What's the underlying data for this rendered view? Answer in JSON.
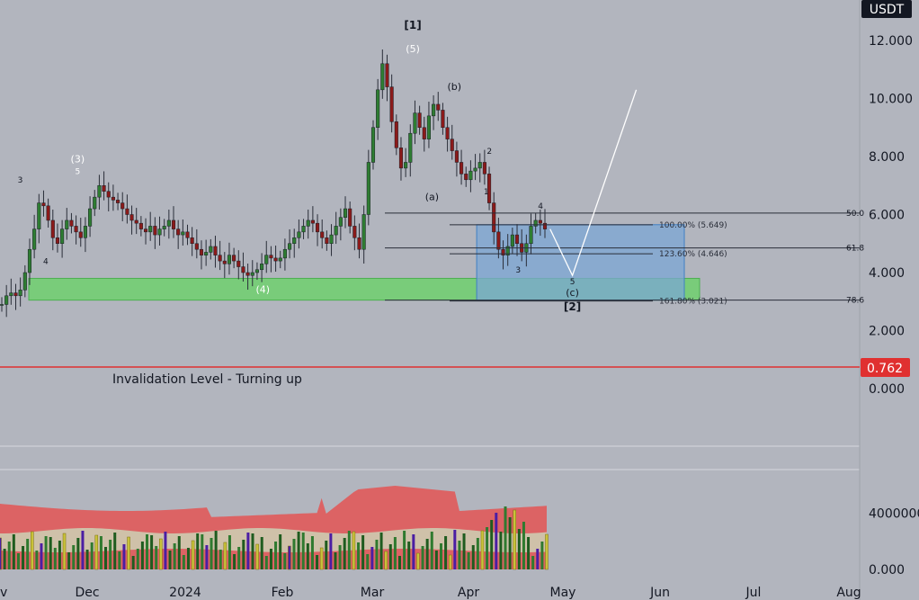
{
  "currency_label": "USDT",
  "price_badge": "0.762",
  "invalidation_text": "Invalidation Level - Turning up",
  "colors": {
    "background": "#b2b5be",
    "up_candle": "#2e7d32",
    "down_candle": "#8b1a1a",
    "zone_green": "#66cc66",
    "zone_blue": "#7ba7d4",
    "invalidation": "#e03030",
    "projection": "#ffffff",
    "band_red": "#e05a5a",
    "band_light": "#cdcbb0"
  },
  "chart_data": [
    {
      "type": "candlestick",
      "y_ticks": [
        "12.000",
        "10.000",
        "8.000",
        "6.000",
        "4.000",
        "2.000",
        "0.000"
      ],
      "y_tick_values": [
        12,
        10,
        8,
        6,
        4,
        2,
        0
      ],
      "x_ticks": [
        "v",
        "Dec",
        "2024",
        "Feb",
        "Mar",
        "Apr",
        "May",
        "Jun",
        "Jul",
        "Aug"
      ],
      "ylim": [
        0,
        13
      ],
      "price_line": 0.762,
      "wave_labels": [
        {
          "text": "[1]",
          "x": "2024-03-12",
          "y": 12.4
        },
        {
          "text": "(5)",
          "x": "2024-03-12",
          "y": 11.6
        },
        {
          "text": "(b)",
          "x": "2024-03-25",
          "y": 10.3
        },
        {
          "text": "(a)",
          "x": "2024-03-18",
          "y": 6.5
        },
        {
          "text": "(3)",
          "x": "2023-11-28",
          "y": 7.8
        },
        {
          "text": "5",
          "x": "2023-11-28",
          "y": 7.4
        },
        {
          "text": "3",
          "x": "2023-11-10",
          "y": 7.1
        },
        {
          "text": "4",
          "x": "2023-11-18",
          "y": 4.3
        },
        {
          "text": "(4)",
          "x": "2024-01-25",
          "y": 3.3
        },
        {
          "text": "2",
          "x": "2024-04-05",
          "y": 8.1
        },
        {
          "text": "1",
          "x": "2024-04-04",
          "y": 6.7
        },
        {
          "text": "4",
          "x": "2024-04-21",
          "y": 6.2
        },
        {
          "text": "3",
          "x": "2024-04-14",
          "y": 4.0
        },
        {
          "text": "5",
          "x": "2024-05-01",
          "y": 3.6
        },
        {
          "text": "(c)",
          "x": "2024-05-01",
          "y": 3.2
        },
        {
          "text": "[2]",
          "x": "2024-05-01",
          "y": 2.7
        }
      ],
      "fib_levels": [
        {
          "label": "100.00% (5.649)",
          "value": 5.649
        },
        {
          "label": "123.60% (4.646)",
          "value": 4.646
        },
        {
          "label": "161.80% (3.021)",
          "value": 3.021
        }
      ],
      "retracement_labels": [
        {
          "label": "50.0",
          "value": 6.05
        },
        {
          "label": "61.8",
          "value": 4.85
        },
        {
          "label": "78.6",
          "value": 3.05
        }
      ],
      "zones": [
        {
          "name": "green",
          "from": "2023-11-01",
          "to": "2024-06-15",
          "low": 3.05,
          "high": 3.8
        },
        {
          "name": "blue",
          "from": "2024-04-01",
          "to": "2024-06-10",
          "low": 3.05,
          "high": 5.65
        }
      ],
      "projection": [
        {
          "x": "2024-04-24",
          "y": 5.5
        },
        {
          "x": "2024-05-01",
          "y": 3.9
        },
        {
          "x": "2024-05-21",
          "y": 10.3
        }
      ],
      "ohlc_approx": [
        2.9,
        3.2,
        3.3,
        3.2,
        3.4,
        4.0,
        4.8,
        5.5,
        6.4,
        6.3,
        5.8,
        5.2,
        5.0,
        5.5,
        5.8,
        5.6,
        5.4,
        5.2,
        5.6,
        6.2,
        6.6,
        7.0,
        6.8,
        6.6,
        6.5,
        6.4,
        6.2,
        6.0,
        5.8,
        5.7,
        5.5,
        5.4,
        5.6,
        5.3,
        5.5,
        5.6,
        5.8,
        5.5,
        5.3,
        5.4,
        5.2,
        5.0,
        4.8,
        4.6,
        4.7,
        4.9,
        4.6,
        4.4,
        4.3,
        4.6,
        4.4,
        4.2,
        4.0,
        3.9,
        4.0,
        4.1,
        4.3,
        4.6,
        4.5,
        4.4,
        4.5,
        4.8,
        5.0,
        5.2,
        5.4,
        5.6,
        5.8,
        5.7,
        5.4,
        5.2,
        5.0,
        5.3,
        5.6,
        5.9,
        6.2,
        5.6,
        5.2,
        4.8,
        6.0,
        7.8,
        9.0,
        10.3,
        11.2,
        10.4,
        9.2,
        8.3,
        7.6,
        7.8,
        8.8,
        9.5,
        9.0,
        8.6,
        9.4,
        9.8,
        9.6,
        9.0,
        8.6,
        8.2,
        7.8,
        7.4,
        7.2,
        7.5,
        7.6,
        7.8,
        7.4,
        6.4,
        5.4,
        4.8,
        4.6,
        4.9,
        5.3,
        5.0,
        4.7,
        5.0,
        5.6,
        5.8,
        5.7,
        5.5
      ]
    },
    {
      "type": "volume",
      "y_ticks": [
        "4000000",
        "0.000"
      ],
      "y_tick_values": [
        4000000,
        0
      ],
      "ylim": [
        0,
        5000000
      ]
    }
  ]
}
